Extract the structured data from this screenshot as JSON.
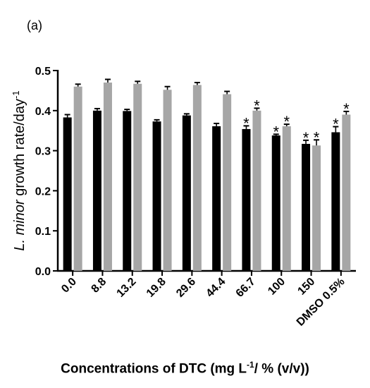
{
  "panel_label": "(a)",
  "chart_data": {
    "type": "bar",
    "categories": [
      "0.0",
      "8.8",
      "13.2",
      "19.8",
      "29.6",
      "44.4",
      "66.7",
      "100",
      "150",
      "DMSO 0.5%"
    ],
    "series": [
      {
        "color": "#000000",
        "values": [
          0.383,
          0.4,
          0.399,
          0.373,
          0.388,
          0.361,
          0.354,
          0.338,
          0.317,
          0.346
        ],
        "errors": [
          0.007,
          0.005,
          0.004,
          0.004,
          0.004,
          0.007,
          0.008,
          0.003,
          0.009,
          0.014
        ],
        "significant": [
          false,
          false,
          false,
          false,
          false,
          false,
          true,
          true,
          true,
          true
        ]
      },
      {
        "color": "#a6a6a6",
        "values": [
          0.46,
          0.47,
          0.467,
          0.452,
          0.464,
          0.441,
          0.4,
          0.361,
          0.313,
          0.39
        ],
        "errors": [
          0.006,
          0.008,
          0.006,
          0.008,
          0.006,
          0.007,
          0.006,
          0.005,
          0.014,
          0.008
        ],
        "significant": [
          false,
          false,
          false,
          false,
          false,
          false,
          true,
          true,
          true,
          true
        ]
      }
    ],
    "significance_marker": "*",
    "ylim": [
      0.0,
      0.5
    ],
    "yticks": [
      "0.0",
      "0.1",
      "0.2",
      "0.3",
      "0.4",
      "0.5"
    ],
    "ylabel": {
      "italic": "L. minor",
      "rest": " growth rate/day",
      "sup": "-1"
    },
    "xlabel": {
      "pre": "Concentrations of DTC (mg L",
      "sup": "-1",
      "post": "/ % (v/v))"
    },
    "grid": false,
    "error_bars": "upper"
  }
}
